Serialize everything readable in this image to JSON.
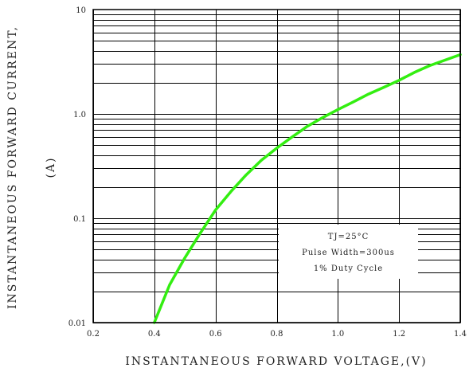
{
  "chart_data": {
    "type": "line",
    "title": "",
    "xlabel": "INSTANTANEOUS FORWARD VOLTAGE,(V)",
    "ylabel_line1": "INSTANTANEOUS FORWARD CURRENT,",
    "ylabel_line2": "(A)",
    "xlim": [
      0.2,
      1.4
    ],
    "ylim": [
      0.01,
      10
    ],
    "y_scale": "log",
    "grid": true,
    "x_ticks": [
      {
        "value": 0.2,
        "label": "0.2"
      },
      {
        "value": 0.4,
        "label": "0.4"
      },
      {
        "value": 0.6,
        "label": "0.6"
      },
      {
        "value": 0.8,
        "label": "0.8"
      },
      {
        "value": 1.0,
        "label": "1.0"
      },
      {
        "value": 1.2,
        "label": "1.2"
      },
      {
        "value": 1.4,
        "label": "1.4"
      }
    ],
    "y_ticks": [
      {
        "value": 0.01,
        "label": "0.01"
      },
      {
        "value": 0.1,
        "label": "0.1"
      },
      {
        "value": 1.0,
        "label": "1.0"
      },
      {
        "value": 10,
        "label": "10"
      }
    ],
    "series": [
      {
        "color": "#33ee11",
        "x": [
          0.4,
          0.45,
          0.5,
          0.55,
          0.6,
          0.65,
          0.7,
          0.75,
          0.8,
          0.85,
          0.9,
          0.95,
          1.0,
          1.05,
          1.1,
          1.15,
          1.2,
          1.25,
          1.3,
          1.4
        ],
        "y": [
          0.01,
          0.023,
          0.042,
          0.072,
          0.12,
          0.18,
          0.26,
          0.36,
          0.47,
          0.6,
          0.76,
          0.92,
          1.1,
          1.3,
          1.55,
          1.8,
          2.1,
          2.5,
          2.9,
          3.7
        ]
      }
    ],
    "annotation": {
      "line1": "TJ=25°C",
      "line2": "Pulse Width=300us",
      "line3": "1% Duty Cycle",
      "position": "bottom-right"
    }
  }
}
